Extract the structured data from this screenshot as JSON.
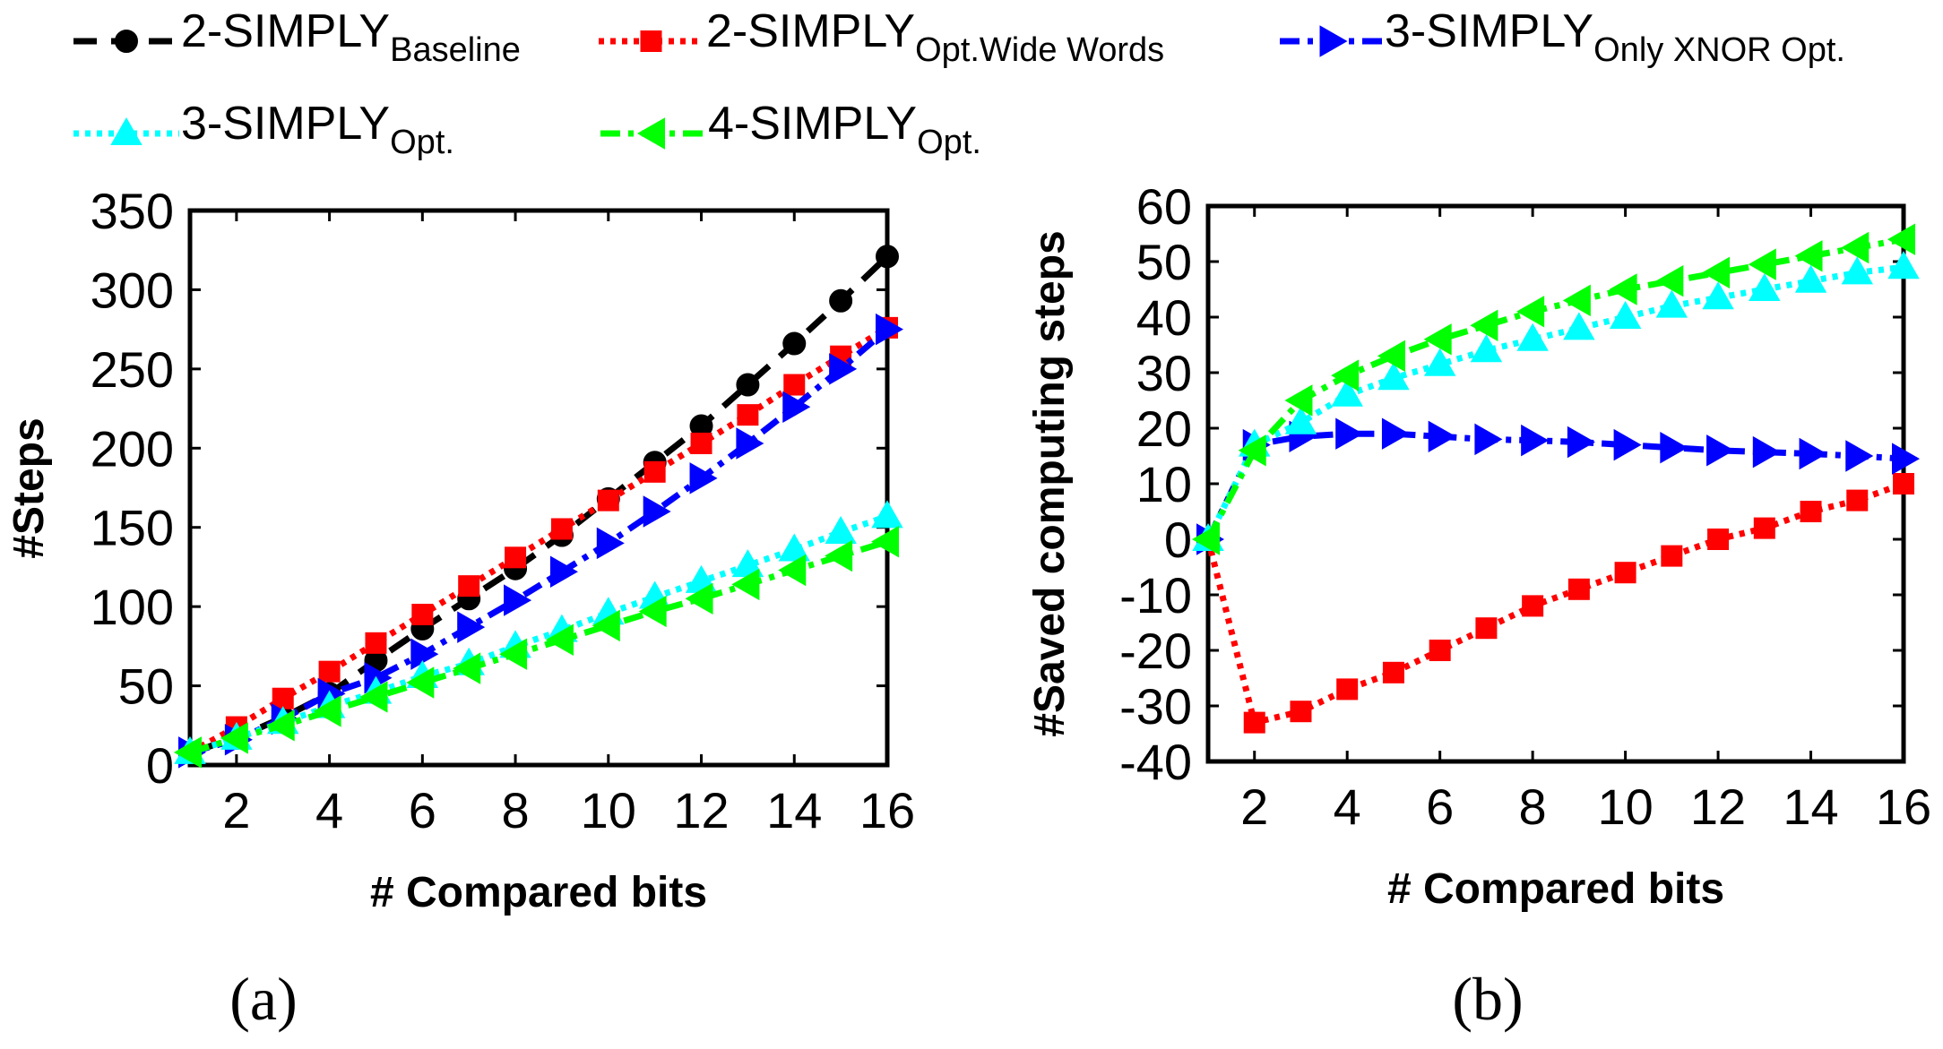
{
  "legend": [
    {
      "name": "2-SIMPLY",
      "subscript": "Baseline",
      "color": "#000000",
      "marker": "circle",
      "dash": "dash"
    },
    {
      "name": "2-SIMPLY",
      "subscript": "Opt.Wide Words",
      "color": "#ff0000",
      "marker": "square",
      "dash": "dot"
    },
    {
      "name": "3-SIMPLY",
      "subscript": "Only XNOR Opt.",
      "color": "#0000ff",
      "marker": "triangle-right",
      "dash": "dashdot"
    },
    {
      "name": "3-SIMPLY",
      "subscript": "Opt.",
      "color": "#00ffff",
      "marker": "triangle-up",
      "dash": "dot"
    },
    {
      "name": "4-SIMPLY",
      "subscript": "Opt.",
      "color": "#00ff00",
      "marker": "triangle-left",
      "dash": "dashdot"
    }
  ],
  "panels": [
    {
      "label": "(a)"
    },
    {
      "label": "(b)"
    }
  ],
  "chart_data": [
    {
      "type": "line",
      "title": "",
      "xlabel": "# Compared bits",
      "ylabel": "#Steps",
      "xlim": [
        1,
        16
      ],
      "ylim": [
        0,
        350
      ],
      "xticks": [
        2,
        4,
        6,
        8,
        10,
        12,
        14,
        16
      ],
      "yticks": [
        0,
        50,
        100,
        150,
        200,
        250,
        300,
        350
      ],
      "x": [
        1,
        2,
        3,
        4,
        5,
        6,
        7,
        8,
        9,
        10,
        11,
        12,
        13,
        14,
        15,
        16
      ],
      "series": [
        {
          "name": "2-SIMPLY Baseline",
          "values": [
            8,
            17,
            30,
            45,
            66,
            86,
            105,
            124,
            145,
            168,
            191,
            214,
            240,
            266,
            293,
            321
          ]
        },
        {
          "name": "2-SIMPLY Opt.Wide Words",
          "values": [
            8,
            24,
            42,
            59,
            77,
            95,
            113,
            131,
            149,
            167,
            185,
            203,
            221,
            240,
            258,
            276
          ]
        },
        {
          "name": "3-SIMPLY Only XNOR Opt.",
          "values": [
            8,
            16,
            29,
            45,
            55,
            70,
            87,
            104,
            122,
            140,
            160,
            181,
            203,
            226,
            250,
            275
          ]
        },
        {
          "name": "3-SIMPLY Opt.",
          "values": [
            8,
            17,
            27,
            37,
            46,
            56,
            64,
            75,
            85,
            96,
            106,
            116,
            126,
            136,
            147,
            157
          ]
        },
        {
          "name": "4-SIMPLY Opt.",
          "values": [
            8,
            17,
            25,
            34,
            43,
            52,
            61,
            70,
            79,
            88,
            97,
            105,
            114,
            123,
            132,
            141
          ]
        }
      ]
    },
    {
      "type": "line",
      "title": "",
      "xlabel": "# Compared bits",
      "ylabel": "#Saved computing steps",
      "xlim": [
        1,
        16
      ],
      "ylim": [
        -40,
        60
      ],
      "xticks": [
        2,
        4,
        6,
        8,
        10,
        12,
        14,
        16
      ],
      "yticks": [
        -40,
        -30,
        -20,
        -10,
        0,
        10,
        20,
        30,
        40,
        50,
        60
      ],
      "x": [
        1,
        2,
        3,
        4,
        5,
        6,
        7,
        8,
        9,
        10,
        11,
        12,
        13,
        14,
        15,
        16
      ],
      "series": [
        {
          "name": "2-SIMPLY Opt.Wide Words",
          "values": [
            0,
            -33,
            -31,
            -27,
            -24,
            -20,
            -16,
            -12,
            -9,
            -6,
            -3,
            0,
            2,
            5,
            7,
            10
          ]
        },
        {
          "name": "3-SIMPLY Only XNOR Opt.",
          "values": [
            0,
            17,
            18.5,
            19,
            19,
            18.5,
            18,
            17.8,
            17.5,
            17,
            16.5,
            16,
            15.7,
            15.4,
            15,
            14.5
          ]
        },
        {
          "name": "3-SIMPLY Opt.",
          "values": [
            0,
            17,
            21,
            26,
            29,
            31.5,
            34,
            36,
            38,
            40,
            42,
            43.5,
            45,
            46.5,
            48,
            49
          ]
        },
        {
          "name": "4-SIMPLY Opt.",
          "values": [
            0,
            16,
            25,
            29.5,
            33,
            36,
            38.5,
            41,
            43,
            45,
            46.5,
            48,
            49.5,
            51,
            52.5,
            54
          ]
        }
      ]
    }
  ]
}
